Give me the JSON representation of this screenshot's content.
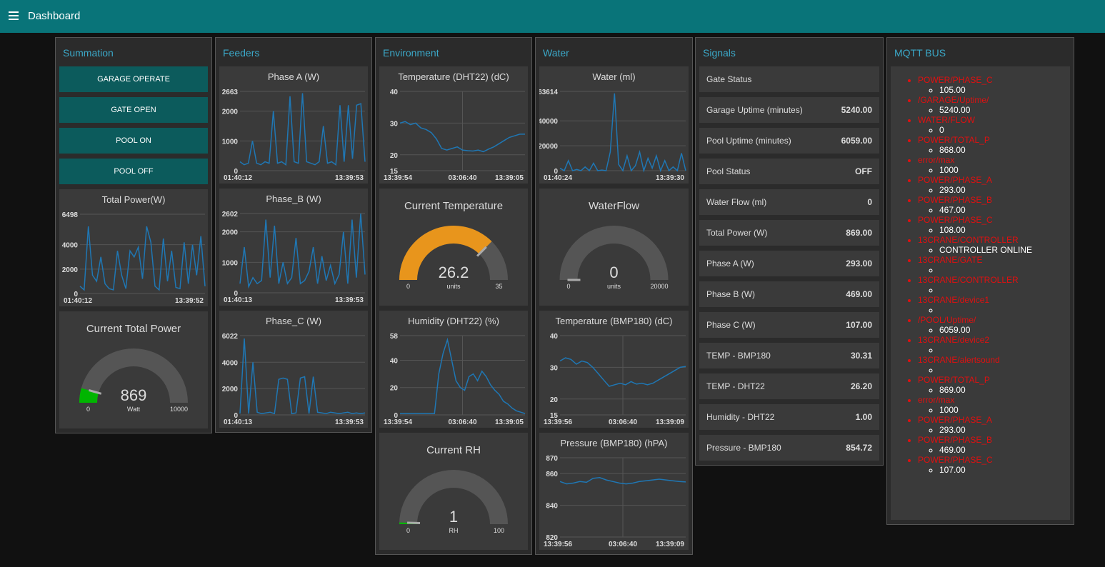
{
  "header": {
    "title": "Dashboard"
  },
  "groups": [
    {
      "title": "Summation",
      "widgets": [
        {
          "kind": "button",
          "label": "GARAGE OPERATE"
        },
        {
          "kind": "button",
          "label": "GATE OPEN"
        },
        {
          "kind": "button",
          "label": "POOL ON"
        },
        {
          "kind": "button",
          "label": "POOL OFF"
        },
        {
          "kind": "chart",
          "type": "line",
          "title": "Total Power(W)",
          "color": "#1f77b4",
          "ylim": [
            0,
            6498
          ],
          "yticks": [
            0,
            2000,
            4000,
            6498
          ],
          "xticks": [
            "01:40:12",
            "13:39:52"
          ],
          "grid": true,
          "values": [
            600,
            300,
            5500,
            1500,
            1000,
            3000,
            800,
            400,
            300,
            3500,
            1500,
            400,
            3500,
            3000,
            3800,
            1200,
            5500,
            4200,
            600,
            300,
            4500,
            1000,
            3500,
            500,
            400,
            4200,
            800,
            4000,
            1500,
            4700,
            600
          ]
        },
        {
          "kind": "gauge",
          "title": "Current Total Power",
          "value": 869,
          "units": "Watt",
          "min": 0,
          "max": 10000,
          "color": "#00b500"
        }
      ]
    },
    {
      "title": "Feeders",
      "widgets": [
        {
          "kind": "chart",
          "type": "line",
          "title": "Phase A (W)",
          "color": "#1f77b4",
          "ylim": [
            0,
            2663
          ],
          "yticks": [
            0,
            1000,
            2000,
            2663
          ],
          "xticks": [
            "01:40:12",
            "13:39:53"
          ],
          "grid": true,
          "values": [
            300,
            200,
            250,
            1000,
            250,
            200,
            300,
            250,
            2000,
            250,
            300,
            200,
            2500,
            300,
            250,
            2600,
            300,
            250,
            200,
            300,
            1500,
            250,
            300,
            200,
            2200,
            300,
            2200,
            400,
            2200,
            2250,
            300
          ]
        },
        {
          "kind": "chart",
          "type": "line",
          "title": "Phase_B (W)",
          "color": "#1f77b4",
          "ylim": [
            0,
            2602
          ],
          "yticks": [
            0,
            1000,
            2000,
            2602
          ],
          "xticks": [
            "01:40:13",
            "13:39:53"
          ],
          "grid": true,
          "values": [
            300,
            1500,
            200,
            500,
            300,
            400,
            2400,
            500,
            2200,
            300,
            1000,
            300,
            500,
            1800,
            300,
            400,
            700,
            1500,
            300,
            1200,
            400,
            900,
            300,
            600,
            2000,
            300,
            2400,
            500,
            2600,
            600
          ]
        },
        {
          "kind": "chart",
          "type": "line",
          "title": "Phase_C (W)",
          "color": "#1f77b4",
          "ylim": [
            0,
            6022
          ],
          "yticks": [
            0,
            2000,
            4000,
            6022
          ],
          "xticks": [
            "01:40:13",
            "13:39:53"
          ],
          "grid": true,
          "values": [
            100,
            5800,
            100,
            4000,
            200,
            100,
            150,
            200,
            100,
            2700,
            2800,
            2700,
            100,
            150,
            2800,
            2900,
            100,
            2900,
            200,
            150,
            100,
            200,
            150,
            100,
            150,
            200,
            100,
            150,
            100,
            150
          ]
        }
      ]
    },
    {
      "title": "Environment",
      "widgets": [
        {
          "kind": "chart",
          "type": "line",
          "title": "Temperature (DHT22) (dC)",
          "color": "#1f77b4",
          "ylim": [
            15,
            40
          ],
          "yticks": [
            15,
            20,
            30,
            40
          ],
          "xticks": [
            "13:39:54",
            "03:06:40",
            "13:39:05"
          ],
          "grid": true,
          "values": [
            30,
            30.5,
            29.5,
            30,
            28.5,
            28,
            27,
            25,
            22,
            21.5,
            22,
            22.5,
            21.5,
            21.3,
            21.2,
            21.5,
            21,
            21.8,
            22.5,
            23.5,
            24.5,
            25.5,
            26,
            26.5,
            26.5
          ]
        },
        {
          "kind": "gauge",
          "title": "Current Temperature",
          "value": 26.2,
          "units": "units",
          "min": 0,
          "max": 35,
          "color": "#e8951c"
        },
        {
          "kind": "chart",
          "type": "line",
          "title": "Humidity (DHT22) (%)",
          "color": "#1f77b4",
          "ylim": [
            0,
            58
          ],
          "yticks": [
            0,
            20,
            40,
            58
          ],
          "xticks": [
            "13:39:54",
            "03:06:40",
            "13:39:05"
          ],
          "grid": true,
          "values": [
            1,
            1,
            1,
            1,
            1,
            1,
            1,
            1,
            1,
            30,
            45,
            55,
            40,
            25,
            20,
            18,
            28,
            30,
            25,
            32,
            28,
            22,
            18,
            15,
            10,
            8,
            5,
            3,
            2,
            1
          ]
        },
        {
          "kind": "gauge",
          "title": "Current RH",
          "value": 1,
          "units": "RH",
          "min": 0,
          "max": 100,
          "color": "#00b500"
        }
      ]
    },
    {
      "title": "Water",
      "widgets": [
        {
          "kind": "chart",
          "type": "line",
          "title": "Water (ml)",
          "color": "#1f77b4",
          "ylim": [
            0,
            63614
          ],
          "yticks": [
            0,
            20000,
            40000,
            63614
          ],
          "xticks": [
            "01:40:24",
            "13:39:30"
          ],
          "grid": true,
          "values": [
            2000,
            0,
            8000,
            0,
            1000,
            0,
            3000,
            0,
            6000,
            0,
            500,
            0,
            15000,
            62000,
            5000,
            0,
            12000,
            0,
            4000,
            15000,
            0,
            10000,
            2000,
            12000,
            0,
            8000,
            0,
            3000,
            0,
            14000,
            0
          ]
        },
        {
          "kind": "gauge",
          "title": "WaterFlow",
          "value": 0,
          "units": "units",
          "min": 0,
          "max": 20000,
          "color": "#888888"
        },
        {
          "kind": "chart",
          "type": "line",
          "title": "Temperature (BMP180) (dC)",
          "color": "#1f77b4",
          "ylim": [
            15,
            40
          ],
          "yticks": [
            15,
            20,
            30,
            40
          ],
          "xticks": [
            "13:39:56",
            "03:06:40",
            "13:39:09"
          ],
          "grid": true,
          "values": [
            32,
            33,
            32.5,
            31,
            32,
            31.5,
            30,
            28,
            26,
            24,
            24.5,
            25,
            24.5,
            25.5,
            24.7,
            25,
            24.5,
            25,
            26,
            27,
            28,
            29,
            30,
            30.3
          ]
        },
        {
          "kind": "chart",
          "type": "line",
          "title": "Pressure (BMP180) (hPA)",
          "color": "#1f77b4",
          "ylim": [
            820,
            870
          ],
          "yticks": [
            820,
            840,
            860,
            870
          ],
          "xticks": [
            "13:39:56",
            "03:06:40",
            "13:39:09"
          ],
          "grid": true,
          "values": [
            855,
            853.5,
            854,
            855,
            854.5,
            857,
            857.5,
            856,
            855,
            854,
            853.5,
            854,
            855,
            855.5,
            856,
            856.5,
            856,
            855.5,
            855,
            854.72
          ]
        }
      ]
    },
    {
      "title": "Signals",
      "widgets": [
        {
          "kind": "row",
          "label": "Gate Status"
        },
        {
          "kind": "row",
          "label": "Garage Uptime (minutes)",
          "value": "5240.00"
        },
        {
          "kind": "row",
          "label": "Pool Uptime (minutes)",
          "value": "6059.00"
        },
        {
          "kind": "row",
          "label": "Pool Status",
          "value": "OFF"
        },
        {
          "kind": "row",
          "label": "Water Flow (ml)",
          "value": "0"
        },
        {
          "kind": "row",
          "label": "Total Power (W)",
          "value": "869.00"
        },
        {
          "kind": "row",
          "label": "Phase A (W)",
          "value": "293.00"
        },
        {
          "kind": "row",
          "label": "Phase B (W)",
          "value": "469.00"
        },
        {
          "kind": "row",
          "label": "Phase C (W)",
          "value": "107.00"
        },
        {
          "kind": "row",
          "label": "TEMP - BMP180",
          "value": "30.31"
        },
        {
          "kind": "row",
          "label": "TEMP - DHT22",
          "value": "26.20"
        },
        {
          "kind": "row",
          "label": "Humidity - DHT22",
          "value": "1.00"
        },
        {
          "kind": "row",
          "label": "Pressure - BMP180",
          "value": "854.72"
        }
      ]
    },
    {
      "title": "MQTT BUS",
      "widgets": [
        {
          "kind": "list",
          "items": [
            {
              "topic": "POWER/PHASE_C",
              "value": "105.00"
            },
            {
              "topic": "/GARAGE/Uptime/",
              "value": "5240.00"
            },
            {
              "topic": "WATER/FLOW",
              "value": "0"
            },
            {
              "topic": "POWER/TOTAL_P",
              "value": "868.00"
            },
            {
              "topic": "error/max",
              "value": "1000"
            },
            {
              "topic": "POWER/PHASE_A",
              "value": "293.00"
            },
            {
              "topic": "POWER/PHASE_B",
              "value": "467.00"
            },
            {
              "topic": "POWER/PHASE_C",
              "value": "108.00"
            },
            {
              "topic": "13CRANE/CONTROLLER",
              "value": "CONTROLLER ONLINE"
            },
            {
              "topic": "13CRANE/GATE"
            },
            {
              "topic": "13CRANE/CONTROLLER"
            },
            {
              "topic": "13CRANE/device1"
            },
            {
              "topic": "/POOL/Uptime/",
              "value": "6059.00"
            },
            {
              "topic": "13CRANE/device2"
            },
            {
              "topic": "13CRANE/alertsound"
            },
            {
              "topic": "POWER/TOTAL_P",
              "value": "869.00"
            },
            {
              "topic": "error/max",
              "value": "1000"
            },
            {
              "topic": "POWER/PHASE_A",
              "value": "293.00"
            },
            {
              "topic": "POWER/PHASE_B",
              "value": "469.00"
            },
            {
              "topic": "POWER/PHASE_C",
              "value": "107.00"
            }
          ]
        }
      ]
    }
  ]
}
